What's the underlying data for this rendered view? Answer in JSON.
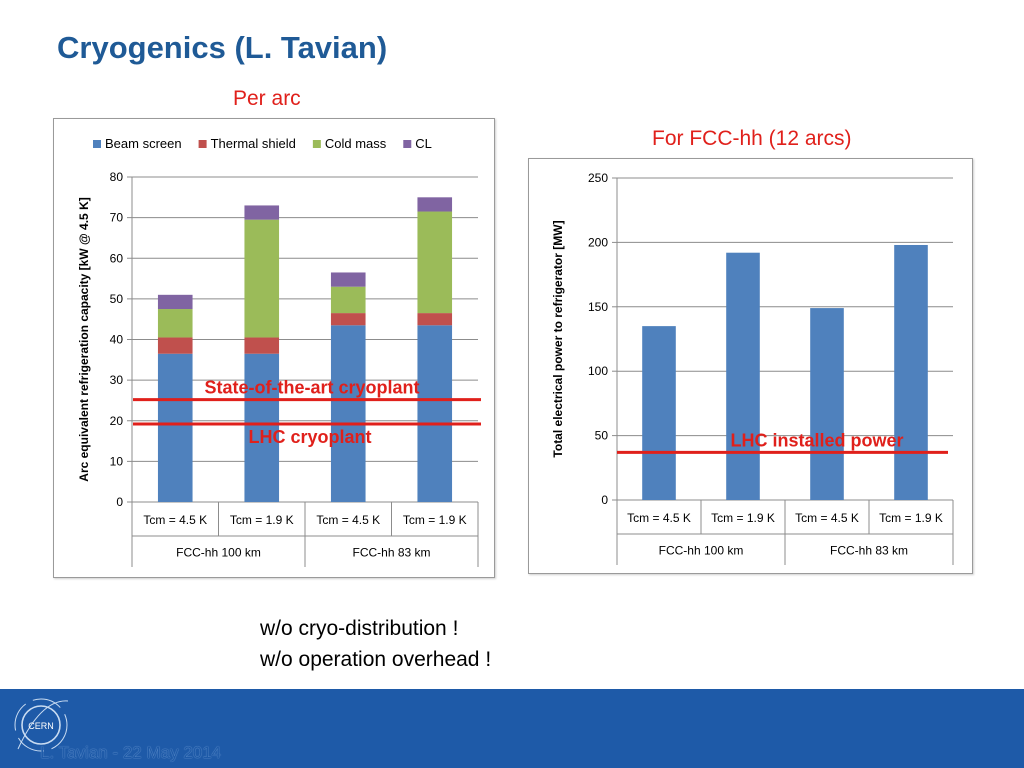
{
  "slide": {
    "title": "Cryogenics (L. Tavian)",
    "per_arc_label": "Per arc",
    "fcc_label": "For FCC-hh (12 arcs)",
    "notes": [
      "w/o cryo-distribution !",
      "w/o operation overhead !"
    ],
    "footer": "L. Tavian  -   22 May 2014",
    "logo_text": "CERN",
    "colors": {
      "title": "#1f5a96",
      "accent_red": "#e0201b",
      "footer_band": "#1e5aa8"
    }
  },
  "chart_data": [
    {
      "type": "bar",
      "stacked": true,
      "categories": [
        "Tcm = 4.5 K",
        "Tcm = 1.9 K",
        "Tcm = 4.5 K",
        "Tcm = 1.9 K"
      ],
      "groups": [
        {
          "label": "FCC-hh 100 km",
          "span": 2
        },
        {
          "label": "FCC-hh 83 km",
          "span": 2
        }
      ],
      "series": [
        {
          "name": "Beam screen",
          "color": "#4f81bd",
          "values": [
            36.5,
            36.5,
            43.5,
            43.5
          ]
        },
        {
          "name": "Thermal shield",
          "color": "#c0504d",
          "values": [
            4,
            4,
            3,
            3
          ]
        },
        {
          "name": "Cold mass",
          "color": "#9bbb59",
          "values": [
            7,
            29,
            6.5,
            25
          ]
        },
        {
          "name": "CL",
          "color": "#8064a2",
          "values": [
            3.5,
            3.5,
            3.5,
            3.5
          ]
        }
      ],
      "ylabel": "Arc equivalent refrigeration capacity [kW @ 4.5 K]",
      "ylim": [
        0,
        80
      ],
      "yticks": [
        0,
        10,
        20,
        30,
        40,
        50,
        60,
        70,
        80
      ],
      "grid": true,
      "legend": "top",
      "reference_lines": [
        {
          "label": "State-of-the-art cryoplant",
          "value": 25.2,
          "color": "#e0201b"
        },
        {
          "label": "LHC cryoplant",
          "value": 19.2,
          "color": "#e0201b"
        }
      ]
    },
    {
      "type": "bar",
      "categories": [
        "Tcm = 4.5 K",
        "Tcm = 1.9 K",
        "Tcm = 4.5 K",
        "Tcm = 1.9 K"
      ],
      "groups": [
        {
          "label": "FCC-hh 100 km",
          "span": 2
        },
        {
          "label": "FCC-hh 83 km",
          "span": 2
        }
      ],
      "values": [
        135,
        192,
        149,
        198
      ],
      "color": "#4f81bd",
      "ylabel": "Total electrical power to refrigerator [MW]",
      "ylim": [
        0,
        250
      ],
      "yticks": [
        0,
        50,
        100,
        150,
        200,
        250
      ],
      "grid": true,
      "reference_lines": [
        {
          "label": "LHC installed power",
          "value": 37,
          "color": "#e0201b"
        }
      ]
    }
  ]
}
